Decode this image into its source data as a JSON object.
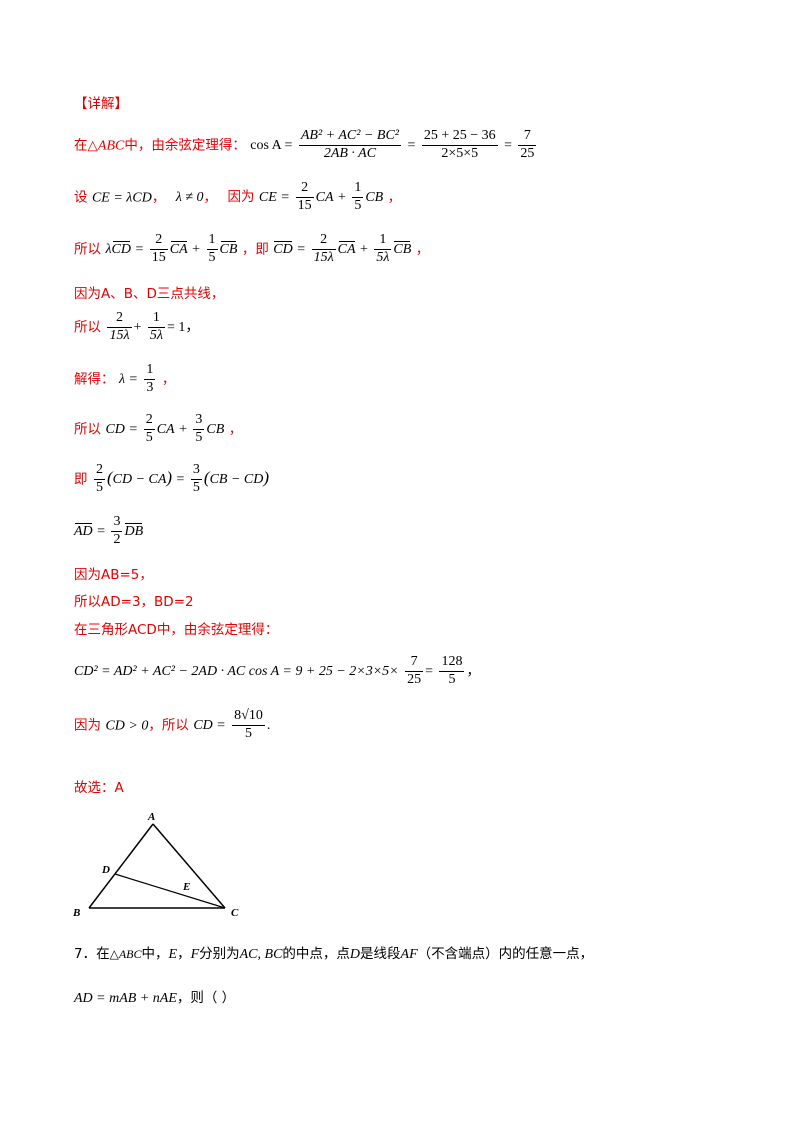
{
  "heading": "【详解】",
  "lines": {
    "l1_pre": "在△",
    "l1_abc": "ABC",
    "l1_mid": "中，由余弦定理得：",
    "l1_cos": "cos A =",
    "l1_frac1_num": "AB² + AC² − BC²",
    "l1_frac1_den": "2AB · AC",
    "l1_frac2_num": "25 + 25 − 36",
    "l1_frac2_den": "2×5×5",
    "l1_frac3_num": "7",
    "l1_frac3_den": "25",
    "l2_pre": "设",
    "l2_expr": "CE = λCD",
    "l2_lambda": "λ ≠ 0",
    "l2_because": "因为",
    "l2_frac1_num": "2",
    "l2_frac1_den": "15",
    "l2_frac2_num": "1",
    "l2_frac2_den": "5",
    "l3_pre": "所以",
    "l3_mid": "，即",
    "l3_frac_a_num": "2",
    "l3_frac_a_den": "15",
    "l3_frac_b_num": "1",
    "l3_frac_b_den": "5",
    "l3_frac_c_num": "2",
    "l3_frac_c_den": "15λ",
    "l3_frac_d_num": "1",
    "l3_frac_d_den": "5λ",
    "l4": "因为A、B、D三点共线，",
    "l5_pre": "所以",
    "l5_frac1_num": "2",
    "l5_frac1_den": "15λ",
    "l5_frac2_num": "1",
    "l5_frac2_den": "5λ",
    "l5_tail": "= 1，",
    "l6_pre": "解得：",
    "l6_lhs": "λ =",
    "l6_num": "1",
    "l6_den": "3",
    "l7_pre": "所以",
    "l7_frac1_num": "2",
    "l7_frac1_den": "5",
    "l7_frac2_num": "3",
    "l7_frac2_den": "5",
    "l8_pre": "即",
    "l8_frac1_num": "2",
    "l8_frac1_den": "5",
    "l8_frac2_num": "3",
    "l8_frac2_den": "5",
    "l9_frac_num": "3",
    "l9_frac_den": "2",
    "l10": "因为AB=5，",
    "l11": "所以AD=3，BD=2",
    "l12": "在三角形ACD中，由余弦定理得：",
    "l13_expr": "CD² = AD² + AC² − 2AD · AC cos A = 9 + 25 − 2×3×5×",
    "l13_frac1_num": "7",
    "l13_frac1_den": "25",
    "l13_frac2_num": "128",
    "l13_frac2_den": "5",
    "l14_pre": "因为",
    "l14_cond": "CD > 0",
    "l14_mid": "，所以",
    "l14_lhs": "CD =",
    "l14_num": "8√10",
    "l14_den": "5",
    "l15": "故选：A"
  },
  "figure": {
    "label_a": "A",
    "label_b": "B",
    "label_c": "C",
    "label_d": "D",
    "label_e": "E"
  },
  "question": {
    "line1_num": "7．在",
    "line1_tri": "△ABC",
    "line1_a": "中，",
    "line1_e": "E",
    "line1_b": "，",
    "line1_f": "F",
    "line1_c": "分别为",
    "line1_acbc": "AC, BC",
    "line1_d": "的中点，点",
    "line1_dd": "D",
    "line1_e2": "是线段",
    "line1_af": "AF",
    "line1_f2": "（不含端点）内的任意一点，",
    "line2_expr": "AD = mAB + nAE",
    "line2_tail": "，则（      ）"
  }
}
